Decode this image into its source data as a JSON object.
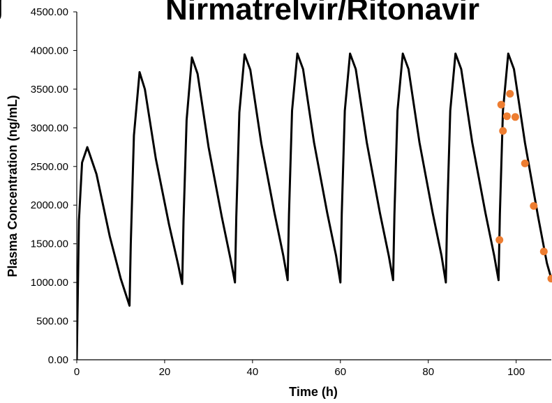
{
  "chart_data": {
    "type": "line",
    "title": "Nirmatrelvir/Ritonavir",
    "panel_letter": "g",
    "xlabel": "Time (h)",
    "ylabel": "Plasma Concentration (ng/mL)",
    "xlim": [
      0,
      108
    ],
    "ylim": [
      0,
      4500
    ],
    "x_ticks": [
      0,
      20,
      40,
      60,
      80,
      100
    ],
    "y_ticks": [
      "0.00",
      "500.00",
      "1000.00",
      "1500.00",
      "2000.00",
      "2500.00",
      "3000.00",
      "3500.00",
      "4000.00",
      "4500.00"
    ],
    "y_tick_values": [
      0,
      500,
      1000,
      1500,
      2000,
      2500,
      3000,
      3500,
      4000,
      4500
    ],
    "grid": false,
    "legend": "none",
    "series": [
      {
        "kind": "line",
        "color": "#000000",
        "x": [
          0,
          0.5,
          1.2,
          2.4,
          4.5,
          7.5,
          10,
          12,
          12.3,
          13,
          14.3,
          15.5,
          18,
          21,
          23,
          24,
          24.3,
          25,
          26.2,
          27.5,
          30,
          33,
          35,
          36,
          36.3,
          37,
          38.2,
          39.5,
          42,
          45,
          47,
          48,
          48.3,
          49,
          50.2,
          51.5,
          54,
          57,
          59,
          60,
          60.3,
          61,
          62.2,
          63.5,
          66,
          69,
          71,
          72,
          72.3,
          73,
          74.2,
          75.5,
          78,
          81,
          83,
          84,
          84.3,
          85,
          86.2,
          87.5,
          90,
          93,
          95,
          96,
          96.3,
          97,
          98.2,
          99.5,
          102,
          105,
          107,
          108
        ],
        "y": [
          0,
          1800,
          2550,
          2750,
          2400,
          1600,
          1050,
          700,
          1500,
          2900,
          3720,
          3500,
          2600,
          1750,
          1250,
          980,
          1800,
          3100,
          3910,
          3700,
          2750,
          1850,
          1300,
          1000,
          1850,
          3200,
          3950,
          3750,
          2800,
          1900,
          1350,
          1030,
          1880,
          3220,
          3960,
          3760,
          2810,
          1900,
          1350,
          1000,
          1880,
          3220,
          3960,
          3760,
          2810,
          1900,
          1350,
          1030,
          1880,
          3220,
          3960,
          3760,
          2810,
          1900,
          1350,
          1000,
          1880,
          3220,
          3960,
          3760,
          2810,
          1900,
          1350,
          1030,
          1880,
          3220,
          3960,
          3760,
          2810,
          1850,
          1250,
          1050
        ]
      },
      {
        "kind": "scatter",
        "color": "#ED7D31",
        "x": [
          96.2,
          96.6,
          97,
          97.9,
          98.6,
          99.8,
          102,
          104,
          106.3,
          108
        ],
        "y": [
          1550,
          3300,
          2960,
          3150,
          3440,
          3140,
          2540,
          1990,
          1400,
          1050
        ]
      }
    ]
  }
}
